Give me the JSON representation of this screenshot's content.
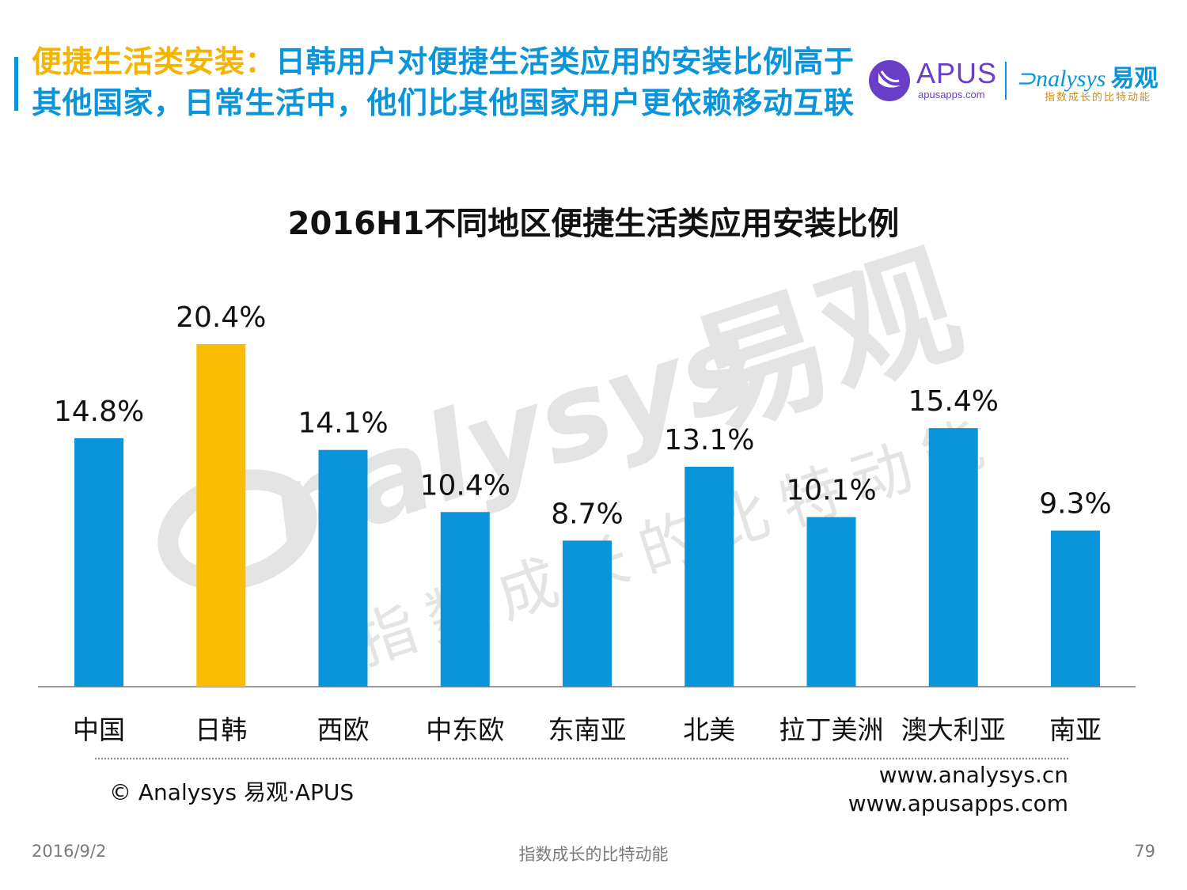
{
  "header": {
    "headline_accent": "便捷生活类安装：",
    "headline_rest": "日韩用户对便捷生活类应用的安装比例高于其他国家，日常生活中，他们比其他国家用户更依赖移动互联"
  },
  "logos": {
    "apus_name": "APUS",
    "apus_url": "apusapps.com",
    "analysys_name": "nalysys",
    "analysys_cn": "易观",
    "analysys_slogan": "指数成长的比特动能",
    "apus_icon": "apus-bird-icon"
  },
  "watermark": {
    "brand": "nalysys",
    "cn": "易观",
    "slogan": "指数成长的比特动能"
  },
  "chart_data": {
    "type": "bar",
    "title": "2016H1不同地区便捷生活类应用安装比例",
    "categories": [
      "中国",
      "日韩",
      "西欧",
      "中东欧",
      "东南亚",
      "北美",
      "拉丁美洲",
      "澳大利亚",
      "南亚"
    ],
    "values": [
      14.8,
      20.4,
      14.1,
      10.4,
      8.7,
      13.1,
      10.1,
      15.4,
      9.3
    ],
    "value_labels": [
      "14.8%",
      "20.4%",
      "14.1%",
      "10.4%",
      "8.7%",
      "13.1%",
      "10.1%",
      "15.4%",
      "9.3%"
    ],
    "unit": "%",
    "highlight_index": 1,
    "colors": {
      "default": "#0a94d9",
      "highlight": "#fbbc04",
      "axis": "#9a9a9a"
    },
    "ylim": [
      0,
      20.4
    ],
    "grid": false,
    "legend": "none"
  },
  "footer": {
    "copyright": "© Analysys 易观·APUS",
    "url1": "www.analysys.cn",
    "url2": "www.apusapps.com"
  },
  "page": {
    "date": "2016/9/2",
    "slogan": "指数成长的比特动能",
    "number": "79"
  }
}
